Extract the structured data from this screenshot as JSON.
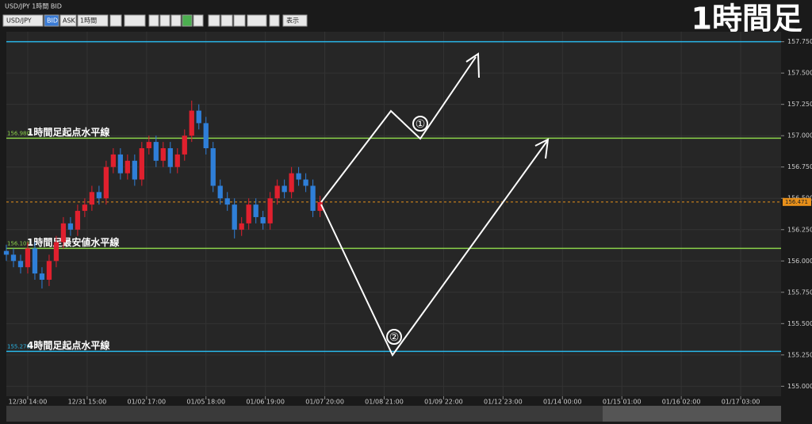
{
  "window_title": "USD/JPY 1時間 BID",
  "corner_title": "1時間足",
  "toolbar": {
    "symbol": "USD/JPY",
    "bid": "BID",
    "ask": "ASK",
    "interval": "1時間",
    "display": "表示"
  },
  "chart_data": {
    "type": "candlestick",
    "x": [
      -9,
      -6,
      -3,
      0,
      3,
      6,
      9,
      12,
      15,
      18,
      21,
      24,
      27,
      30,
      33,
      36,
      39,
      42,
      45,
      48,
      51,
      54,
      57,
      60,
      63,
      66,
      69,
      72,
      75,
      78,
      81,
      84,
      87,
      90,
      93,
      96,
      99,
      102,
      105,
      108,
      111,
      114,
      117,
      120,
      123
    ],
    "open": [
      156.08,
      156.05,
      156.0,
      155.95,
      156.1,
      155.9,
      155.85,
      156.0,
      156.15,
      156.3,
      156.25,
      156.4,
      156.45,
      156.55,
      156.5,
      156.75,
      156.85,
      156.7,
      156.8,
      156.65,
      156.9,
      156.95,
      156.8,
      156.9,
      156.75,
      156.85,
      157.0,
      157.2,
      157.1,
      156.9,
      156.6,
      156.5,
      156.45,
      156.25,
      156.3,
      156.45,
      156.35,
      156.3,
      156.5,
      156.6,
      156.55,
      156.7,
      156.65,
      156.6,
      156.4
    ],
    "high": [
      156.13,
      156.1,
      156.05,
      156.15,
      156.15,
      155.95,
      156.05,
      156.2,
      156.35,
      156.35,
      156.45,
      156.5,
      156.6,
      156.6,
      156.8,
      156.9,
      156.9,
      156.85,
      156.85,
      156.95,
      157.0,
      157.0,
      156.95,
      156.95,
      156.9,
      157.05,
      157.28,
      157.25,
      157.15,
      156.95,
      156.65,
      156.55,
      156.5,
      156.35,
      156.5,
      156.5,
      156.4,
      156.55,
      156.65,
      156.65,
      156.75,
      156.75,
      156.7,
      156.65,
      156.52
    ],
    "low": [
      156.0,
      155.95,
      155.9,
      155.9,
      155.85,
      155.78,
      155.8,
      155.95,
      156.1,
      156.2,
      156.2,
      156.35,
      156.4,
      156.45,
      156.45,
      156.7,
      156.65,
      156.65,
      156.6,
      156.6,
      156.85,
      156.75,
      156.75,
      156.7,
      156.7,
      156.8,
      156.95,
      157.05,
      156.85,
      156.55,
      156.45,
      156.4,
      156.18,
      156.2,
      156.25,
      156.3,
      156.25,
      156.25,
      156.45,
      156.5,
      156.5,
      156.6,
      156.55,
      156.35,
      156.35
    ],
    "close": [
      156.05,
      156.0,
      155.95,
      156.1,
      155.9,
      155.85,
      156.0,
      156.15,
      156.3,
      156.25,
      156.4,
      156.45,
      156.55,
      156.5,
      156.75,
      156.85,
      156.7,
      156.8,
      156.65,
      156.9,
      156.95,
      156.8,
      156.9,
      156.75,
      156.85,
      157.0,
      157.2,
      157.1,
      156.9,
      156.6,
      156.5,
      156.45,
      156.25,
      156.3,
      156.45,
      156.35,
      156.3,
      156.5,
      156.6,
      156.55,
      156.7,
      156.65,
      156.6,
      156.4,
      156.47
    ],
    "up_color": "#e0202e",
    "down_color": "#2f7fd8",
    "xlim": [
      -9,
      317
    ],
    "xticks": [
      {
        "value": 0,
        "label": "12/30 14:00"
      },
      {
        "value": 25,
        "label": "12/31 15:00"
      },
      {
        "value": 50,
        "label": "01/02 17:00"
      },
      {
        "value": 75,
        "label": "01/05 18:00"
      },
      {
        "value": 100,
        "label": "01/06 19:00"
      },
      {
        "value": 125,
        "label": "01/07 20:00"
      },
      {
        "value": 150,
        "label": "01/08 21:00"
      },
      {
        "value": 175,
        "label": "01/09 22:00"
      },
      {
        "value": 200,
        "label": "01/12 23:00"
      },
      {
        "value": 225,
        "label": "01/14 00:00"
      },
      {
        "value": 250,
        "label": "01/15 01:00"
      },
      {
        "value": 275,
        "label": "01/16 02:00"
      },
      {
        "value": 300,
        "label": "01/17 03:00"
      }
    ],
    "ylim": [
      154.92,
      157.83
    ],
    "yticks": [
      {
        "value": 155.0,
        "label": "155.000"
      },
      {
        "value": 155.25,
        "label": "155.250"
      },
      {
        "value": 155.5,
        "label": "155.500"
      },
      {
        "value": 155.75,
        "label": "155.750"
      },
      {
        "value": 156.0,
        "label": "156.000"
      },
      {
        "value": 156.25,
        "label": "156.250"
      },
      {
        "value": 156.5,
        "label": "156.500"
      },
      {
        "value": 156.75,
        "label": "156.750"
      },
      {
        "value": 157.0,
        "label": "157.000"
      },
      {
        "value": 157.25,
        "label": "157.250"
      },
      {
        "value": 157.5,
        "label": "157.500"
      },
      {
        "value": 157.75,
        "label": "157.750"
      }
    ],
    "grid": true,
    "hlines": [
      {
        "price": 157.75,
        "color": "#29b6e8"
      },
      {
        "price": 156.98,
        "price_label": "156.980",
        "text": "1時間足起点水平線",
        "color": "#8bd24a"
      },
      {
        "price": 156.101,
        "price_label": "156.101",
        "text": "1時間足最安値水平線",
        "color": "#8bd24a"
      },
      {
        "price": 155.278,
        "price_label": "155.278",
        "text": "4時間足起点水平線",
        "color": "#29b6e8"
      }
    ],
    "current_price": {
      "value": 156.471,
      "label": "156.471",
      "color": "#e8901a"
    },
    "annotations": [
      "①",
      "②"
    ]
  }
}
